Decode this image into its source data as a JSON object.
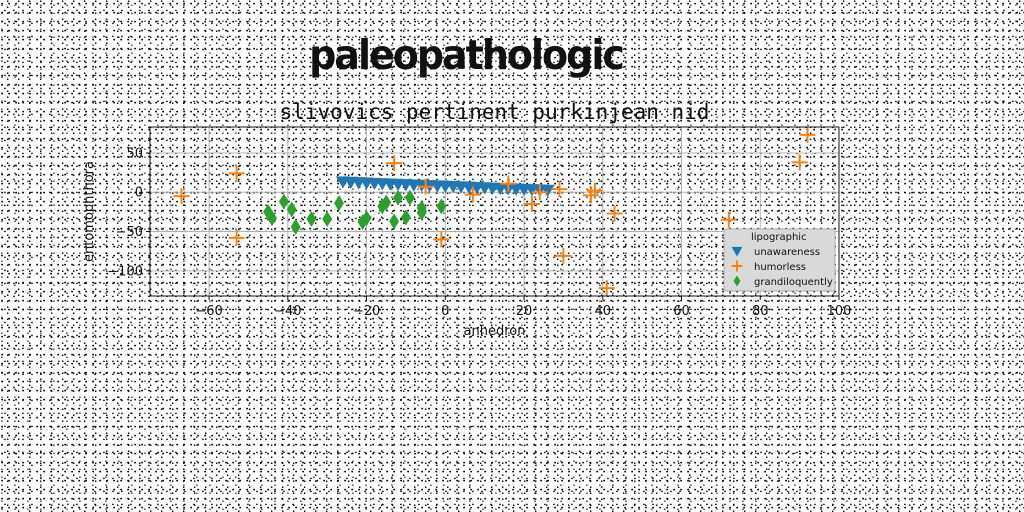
{
  "page": {
    "heading": "paleopathologic"
  },
  "chart_data": {
    "type": "scatter",
    "title": "slivovics pertinent purkinjean nid",
    "xlabel": "anhedron",
    "ylabel": "entomophthora",
    "xlim": [
      -75,
      100
    ],
    "ylim": [
      -132,
      83
    ],
    "xticks": [
      -60,
      -40,
      -20,
      0,
      20,
      40,
      60,
      80,
      100
    ],
    "yticks": [
      50,
      0,
      -50,
      -100
    ],
    "grid": true,
    "legend": {
      "title": "lipographic",
      "placement": "lower-right",
      "entries": [
        "unawareness",
        "humorless",
        "grandiloquently"
      ]
    },
    "series": [
      {
        "name": "unawareness",
        "marker": "triangle-down",
        "color": "#1f77b4",
        "x": [
          -26,
          -24,
          -22,
          -20,
          -18,
          -16,
          -14,
          -12,
          -10,
          -8,
          -6,
          -4,
          -2,
          0,
          2,
          4,
          6,
          8,
          10,
          12,
          14,
          16,
          18,
          20,
          22,
          24,
          26
        ],
        "y": [
          13.5,
          13,
          12.5,
          12,
          11.6,
          11.2,
          10.8,
          10.4,
          10,
          9.6,
          9.2,
          8.8,
          8.4,
          8,
          7.6,
          7.2,
          6.8,
          6.4,
          6,
          5.6,
          5.2,
          4.8,
          4.4,
          4,
          3.6,
          3.2,
          2.8
        ]
      },
      {
        "name": "humorless",
        "marker": "plus",
        "color": "#ff7f0e",
        "x": [
          -67,
          -53,
          -53,
          -13,
          -5,
          -1,
          7,
          16,
          22,
          24,
          29,
          30,
          37,
          38,
          41,
          43,
          72,
          90,
          92
        ],
        "y": [
          -5,
          24,
          -58,
          37,
          7,
          -60,
          -3,
          11,
          -15,
          0,
          4,
          -81,
          -4,
          2,
          -122,
          -27,
          -35,
          38,
          73
        ]
      },
      {
        "name": "grandiloquently",
        "marker": "diamond",
        "color": "#2ca02c",
        "x": [
          -45,
          -44,
          -41,
          -39,
          -38,
          -34,
          -30,
          -27,
          -21,
          -20,
          -16,
          -15,
          -13,
          -12,
          -10,
          -9,
          -6,
          -6,
          -1
        ],
        "y": [
          -25,
          -33,
          -12,
          -22,
          -44,
          -34,
          -34,
          -14,
          -38,
          -33,
          -18,
          -13,
          -37,
          -7,
          -32,
          -7,
          -26,
          -20,
          -18
        ]
      }
    ]
  }
}
